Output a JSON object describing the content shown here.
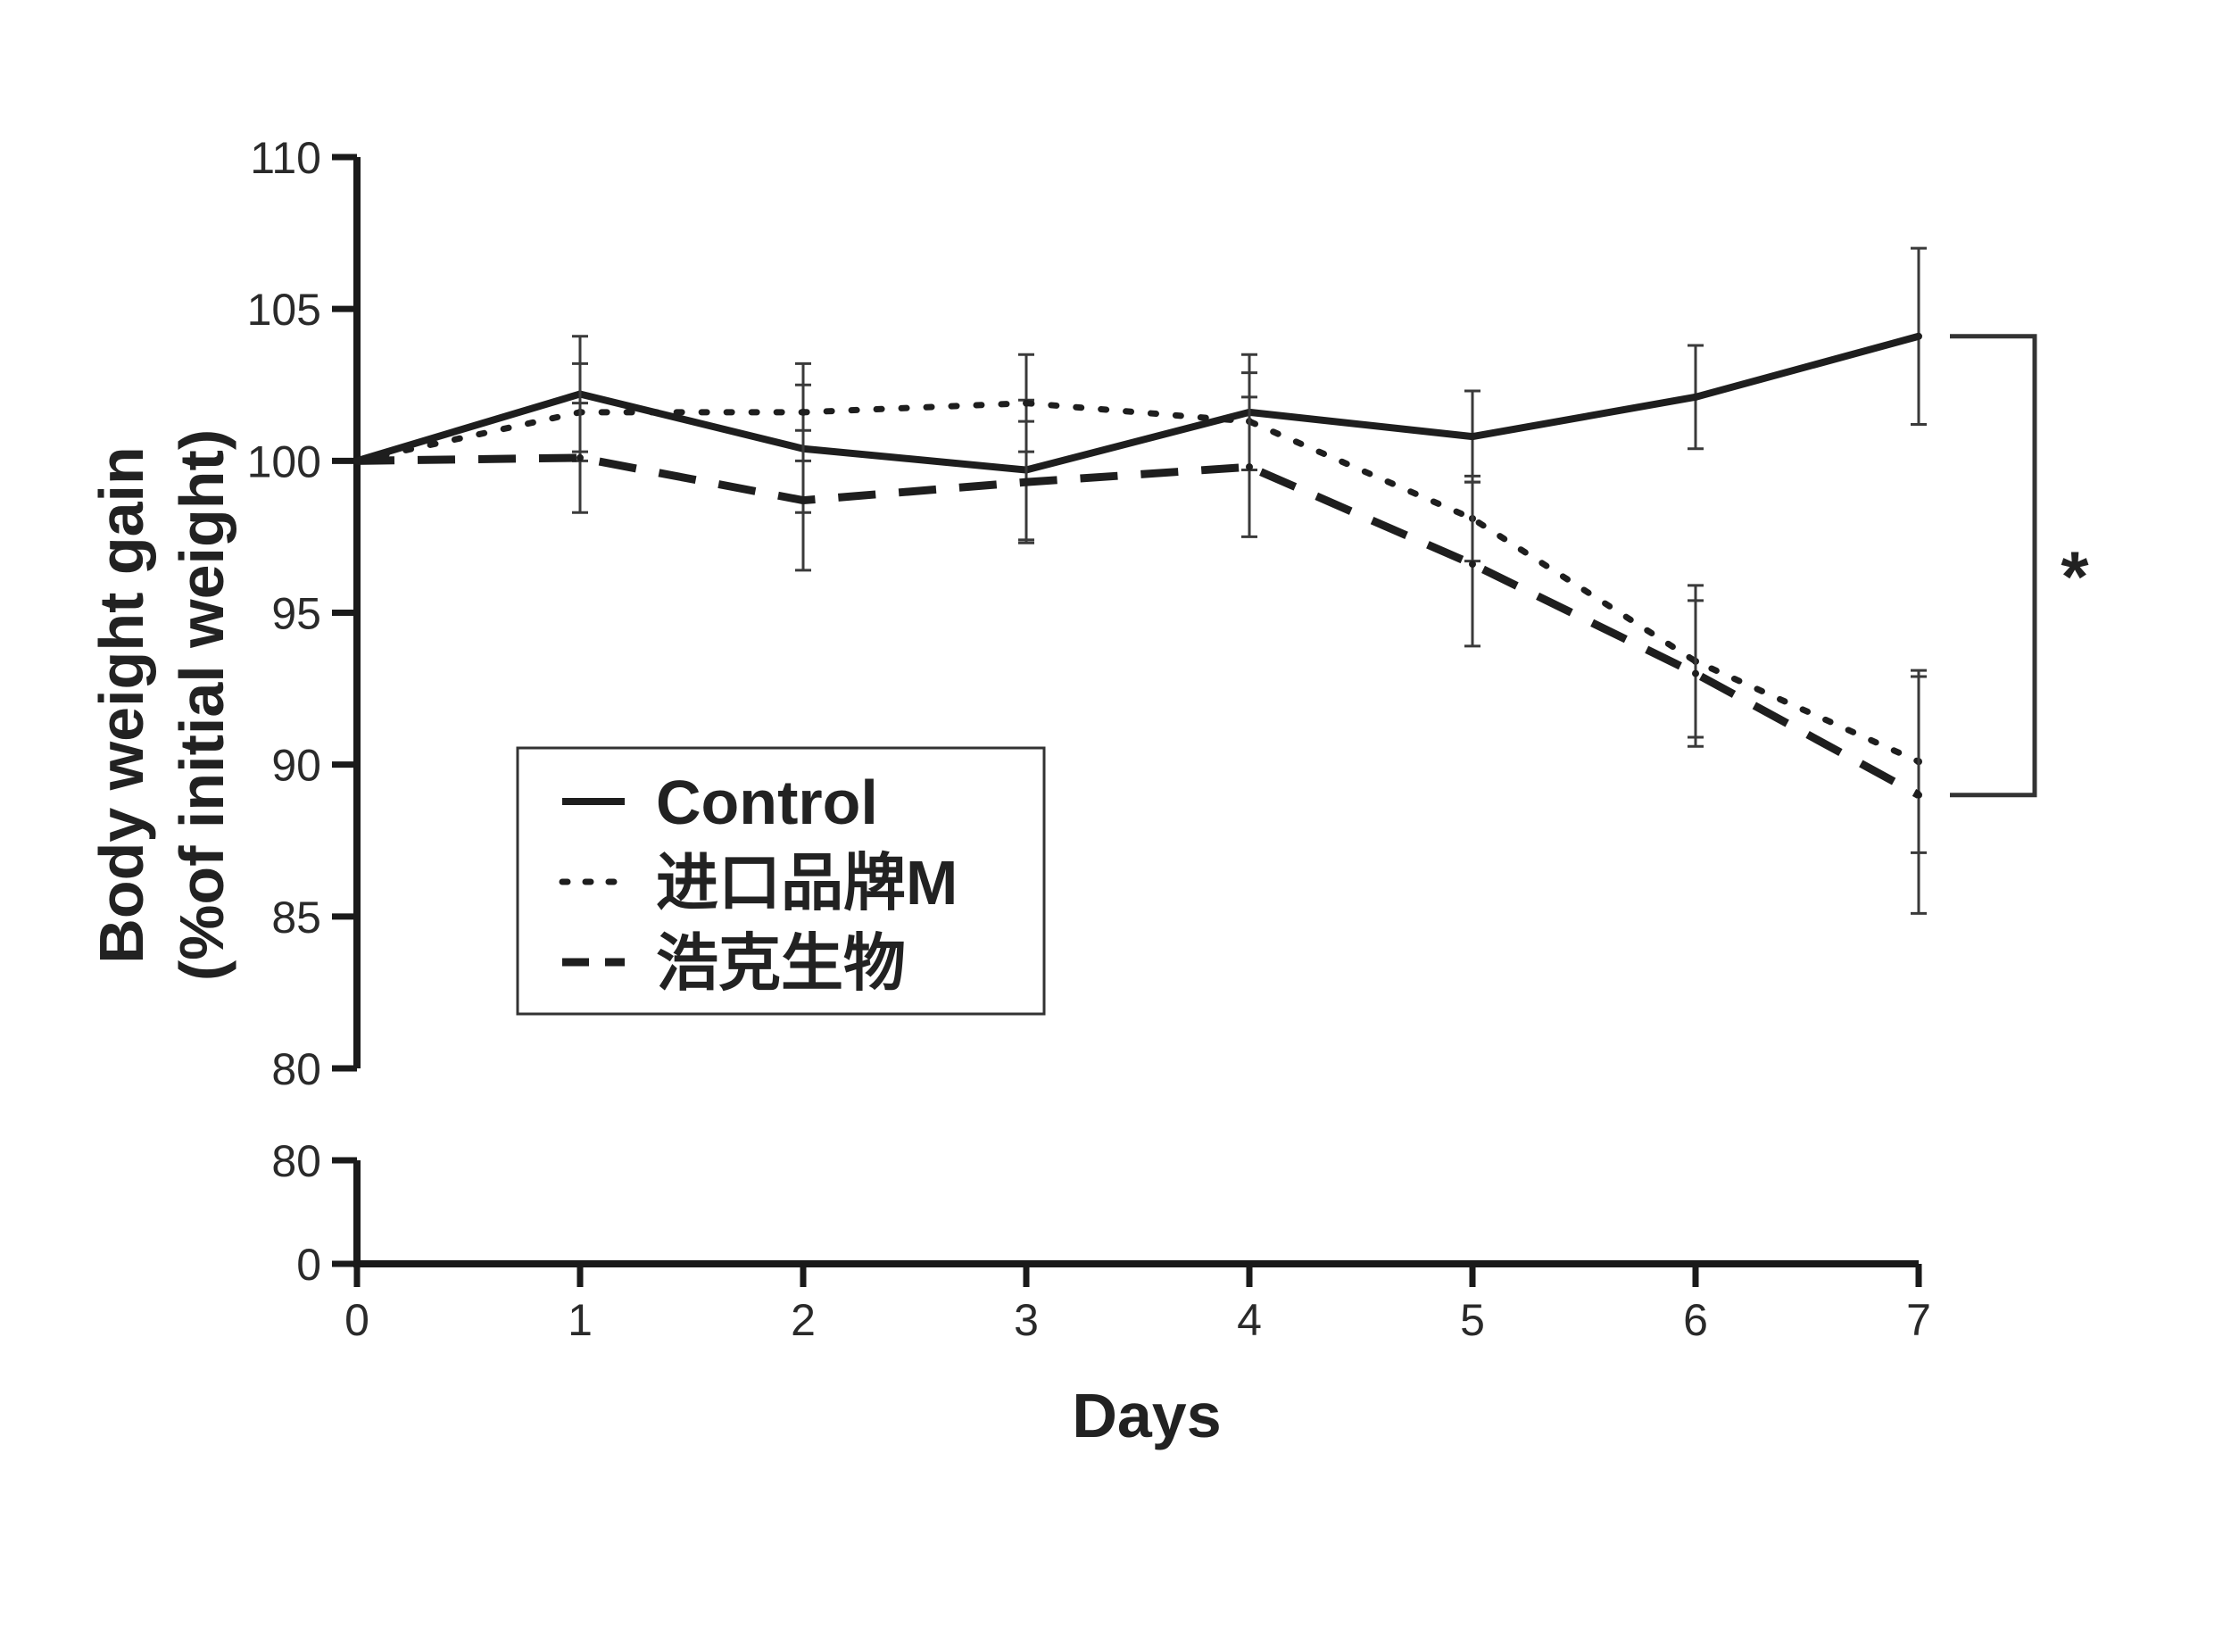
{
  "chart_data": {
    "type": "line",
    "title": "",
    "xlabel": "Days",
    "ylabel": "Body weight gain\n(%of initial weight)",
    "x": [
      0,
      1,
      2,
      3,
      4,
      5,
      6,
      7
    ],
    "xlim": [
      0,
      7
    ],
    "ylim": [
      80,
      110
    ],
    "yticks": [
      80,
      85,
      90,
      95,
      100,
      105,
      110
    ],
    "broken_axis": {
      "lower_segment_ticks": [
        0,
        80
      ]
    },
    "series": [
      {
        "name": "Control",
        "line_style": "solid",
        "values": [
          100,
          102.2,
          100.4,
          99.7,
          101.6,
          100.8,
          102.1,
          104.1
        ],
        "error": [
          0,
          1.9,
          2.1,
          2.3,
          1.9,
          1.5,
          1.7,
          2.9
        ]
      },
      {
        "name": "进口品牌M",
        "line_style": "dotted",
        "values": [
          100,
          101.6,
          101.6,
          101.9,
          101.3,
          98.1,
          93.4,
          90.1
        ],
        "error": [
          0,
          1.6,
          1.6,
          1.6,
          1.6,
          1.4,
          2.5,
          3.0
        ]
      },
      {
        "name": "浩克生物",
        "line_style": "dashed",
        "values": [
          100,
          100.1,
          98.7,
          99.3,
          99.8,
          96.6,
          93.0,
          89.0
        ],
        "error": [
          0,
          1.8,
          2.3,
          2.0,
          2.3,
          2.7,
          2.4,
          3.9
        ]
      }
    ],
    "legend_position": "lower-left",
    "annotations": [
      {
        "text": "*",
        "type": "significance-bracket",
        "between_series": [
          "Control",
          "浩克生物"
        ],
        "at_x": 7
      }
    ],
    "grid": false
  }
}
